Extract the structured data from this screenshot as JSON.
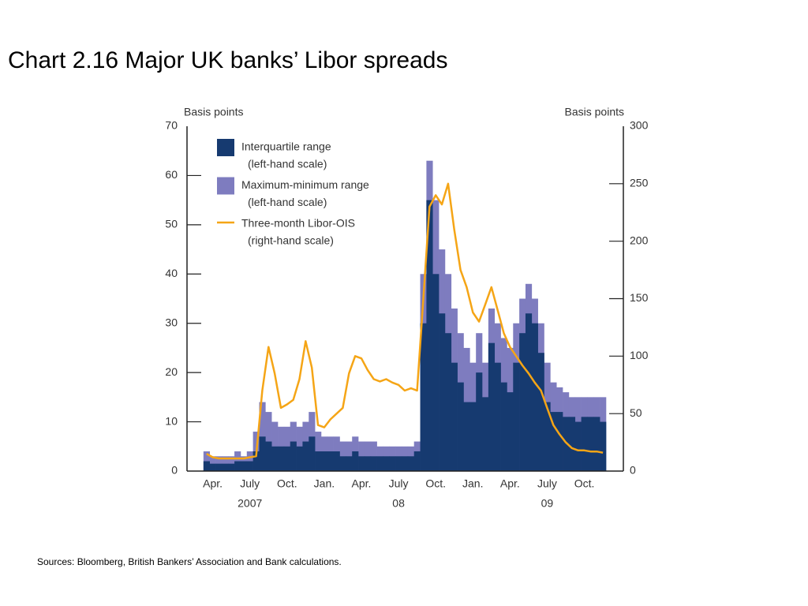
{
  "chart_data": {
    "type": "area-line",
    "title": "Chart 2.16  Major UK banks’ Libor spreads",
    "y_label": "Basis points",
    "y2_label": "Basis points",
    "source": "Sources:  Bloomberg, British Bankers’ Association and Bank calculations.",
    "categories": [
      null,
      null,
      "Apr.",
      null,
      null,
      null,
      null,
      null,
      "July",
      null,
      null,
      null,
      null,
      null,
      "Oct.",
      null,
      null,
      null,
      null,
      null,
      "Jan.",
      null,
      null,
      null,
      null,
      null,
      "Apr.",
      null,
      null,
      null,
      null,
      null,
      "July",
      null,
      null,
      null,
      null,
      null,
      "Oct.",
      null,
      null,
      null,
      null,
      null,
      "Jan.",
      null,
      null,
      null,
      null,
      null,
      "Apr.",
      null,
      null,
      null,
      null,
      null,
      "July",
      null,
      null,
      null,
      null,
      null,
      "Oct.",
      null,
      null,
      null
    ],
    "years": [
      "2007",
      "08",
      "09"
    ],
    "ylim": [
      0,
      70
    ],
    "yticks": [
      0,
      10,
      20,
      30,
      40,
      50,
      60,
      70
    ],
    "y2lim": [
      0,
      300
    ],
    "y2ticks": [
      0,
      50,
      100,
      150,
      200,
      250,
      300
    ],
    "legend": "upper left",
    "series": [
      {
        "name": "Maximum-minimum range",
        "scale_label": "(left-hand scale)",
        "kind": "area",
        "color": "#7e7cbf",
        "values": [
          null,
          4,
          3,
          3,
          3,
          3,
          4,
          3,
          4,
          8,
          14,
          12,
          10,
          9,
          9,
          10,
          9,
          10,
          12,
          8,
          7,
          7,
          7,
          6,
          6,
          7,
          6,
          6,
          6,
          5,
          5,
          5,
          5,
          5,
          5,
          6,
          40,
          63,
          55,
          45,
          40,
          33,
          28,
          25,
          22,
          28,
          22,
          33,
          30,
          27,
          25,
          30,
          35,
          38,
          35,
          30,
          22,
          18,
          17,
          16,
          15,
          15,
          15,
          15,
          15,
          15
        ]
      },
      {
        "name": "Interquartile range",
        "scale_label": "(left-hand scale)",
        "kind": "area",
        "color": "#163a70",
        "values": [
          null,
          2,
          1.5,
          1.5,
          1.5,
          1.5,
          2,
          2,
          2,
          4,
          7,
          6,
          5,
          5,
          5,
          6,
          5,
          6,
          7,
          4,
          4,
          4,
          4,
          3,
          3,
          4,
          3,
          3,
          3,
          3,
          3,
          3,
          3,
          3,
          3,
          4,
          30,
          55,
          40,
          32,
          28,
          22,
          18,
          14,
          14,
          20,
          15,
          26,
          22,
          18,
          16,
          22,
          28,
          32,
          30,
          24,
          14,
          12,
          12,
          11,
          11,
          10,
          11,
          11,
          11,
          10
        ]
      },
      {
        "name": "Three-month Libor-OIS",
        "scale_label": "(right-hand scale)",
        "kind": "line",
        "axis": "y2",
        "color": "#f5a516",
        "values": [
          null,
          15,
          12,
          11,
          11,
          11,
          11,
          11,
          12,
          13,
          70,
          108,
          85,
          55,
          58,
          62,
          80,
          113,
          90,
          40,
          38,
          45,
          50,
          55,
          85,
          100,
          98,
          88,
          80,
          78,
          80,
          77,
          75,
          70,
          72,
          70,
          150,
          230,
          240,
          232,
          250,
          210,
          175,
          160,
          138,
          130,
          145,
          160,
          140,
          120,
          108,
          100,
          92,
          85,
          77,
          70,
          55,
          40,
          32,
          25,
          20,
          18,
          18,
          17,
          17,
          16
        ]
      }
    ],
    "legend_order": [
      1,
      0,
      2
    ]
  }
}
